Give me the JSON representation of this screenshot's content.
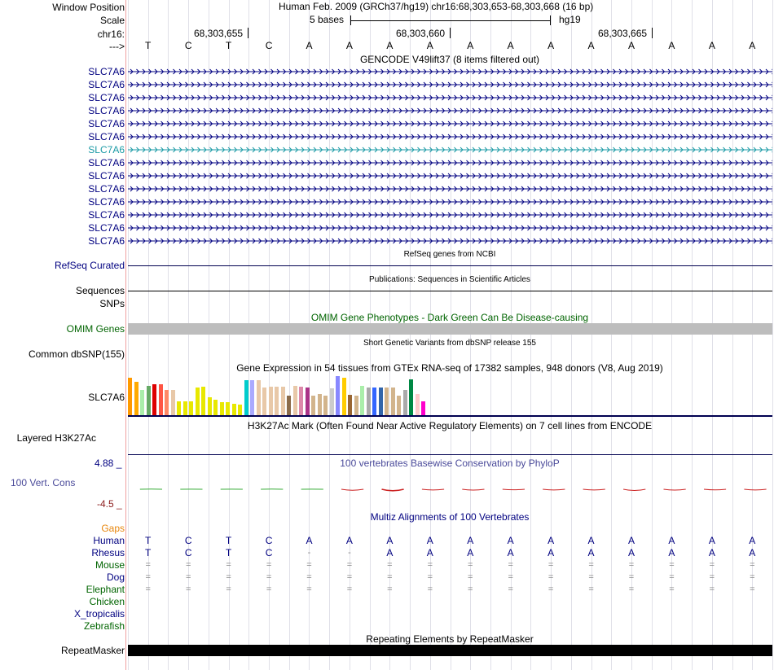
{
  "header": {
    "window_position_label": "Window Position",
    "assembly_text": "Human Feb. 2009 (GRCh37/hg19)   chr16:68,303,653-68,303,668 (16 bp)",
    "scale_label": "Scale",
    "scale_text": "5 bases",
    "scale_assembly": "hg19",
    "chrom_label": "chr16:",
    "coords": [
      "68,303,655",
      "68,303,660",
      "68,303,665"
    ],
    "strand_label": "--->",
    "bases": [
      "T",
      "C",
      "T",
      "C",
      "A",
      "A",
      "A",
      "A",
      "A",
      "A",
      "A",
      "A",
      "A",
      "A",
      "A",
      "A"
    ]
  },
  "gencode": {
    "title": "GENCODE V49lift37 (8 items filtered out)",
    "genes": [
      "SLC7A6",
      "SLC7A6",
      "SLC7A6",
      "SLC7A6",
      "SLC7A6",
      "SLC7A6",
      "SLC7A6",
      "SLC7A6",
      "SLC7A6",
      "SLC7A6",
      "SLC7A6",
      "SLC7A6",
      "SLC7A6",
      "SLC7A6"
    ],
    "highlight_index": 6
  },
  "refseq": {
    "title": "RefSeq genes from NCBI",
    "label": "RefSeq Curated"
  },
  "publications": {
    "title": "Publications: Sequences in Scientific Articles",
    "label": "Sequences"
  },
  "snps": {
    "label": "SNPs"
  },
  "omim": {
    "title": "OMIM Gene Phenotypes - Dark Green Can Be Disease-causing",
    "label": "OMIM Genes"
  },
  "dbsnp": {
    "title": "Short Genetic Variants from dbSNP release 155",
    "label": "Common dbSNP(155)"
  },
  "gtex": {
    "title": "Gene Expression in 54 tissues from GTEx RNA-seq of 17382 samples, 948 donors (V8, Aug 2019)",
    "label": "SLC7A6",
    "bars": [
      {
        "v": 0.95,
        "c": "#ff9900"
      },
      {
        "v": 0.85,
        "c": "#ffaa00"
      },
      {
        "v": 0.65,
        "c": "#aaeeaa"
      },
      {
        "v": 0.75,
        "c": "#66aa66"
      },
      {
        "v": 0.8,
        "c": "#dd0000"
      },
      {
        "v": 0.8,
        "c": "#ff5544"
      },
      {
        "v": 0.65,
        "c": "#ff8866"
      },
      {
        "v": 0.65,
        "c": "#e8c8a8"
      },
      {
        "v": 0.35,
        "c": "#e8e800"
      },
      {
        "v": 0.35,
        "c": "#e8e800"
      },
      {
        "v": 0.35,
        "c": "#e8e800"
      },
      {
        "v": 0.7,
        "c": "#e8e800"
      },
      {
        "v": 0.72,
        "c": "#e8e800"
      },
      {
        "v": 0.45,
        "c": "#e8e800"
      },
      {
        "v": 0.4,
        "c": "#e8e800"
      },
      {
        "v": 0.33,
        "c": "#e8e800"
      },
      {
        "v": 0.33,
        "c": "#e8e800"
      },
      {
        "v": 0.3,
        "c": "#e8e800"
      },
      {
        "v": 0.28,
        "c": "#e8e800"
      },
      {
        "v": 0.9,
        "c": "#00cccc"
      },
      {
        "v": 0.9,
        "c": "#aaaaff"
      },
      {
        "v": 0.9,
        "c": "#e8c8a8"
      },
      {
        "v": 0.7,
        "c": "#e8c8a8"
      },
      {
        "v": 0.72,
        "c": "#e8c8a8"
      },
      {
        "v": 0.72,
        "c": "#e8c8a8"
      },
      {
        "v": 0.73,
        "c": "#e8c8a8"
      },
      {
        "v": 0.5,
        "c": "#8b6b4a"
      },
      {
        "v": 0.75,
        "c": "#e8c8a8"
      },
      {
        "v": 0.72,
        "c": "#dd88aa"
      },
      {
        "v": 0.7,
        "c": "#aa3388"
      },
      {
        "v": 0.5,
        "c": "#d2b48c"
      },
      {
        "v": 0.55,
        "c": "#d2b48c"
      },
      {
        "v": 0.5,
        "c": "#d2b48c"
      },
      {
        "v": 0.68,
        "c": "#cccccc"
      },
      {
        "v": 1.0,
        "c": "#8888ff"
      },
      {
        "v": 0.95,
        "c": "#ffcc00"
      },
      {
        "v": 0.52,
        "c": "#996633"
      },
      {
        "v": 0.5,
        "c": "#d2b48c"
      },
      {
        "v": 0.75,
        "c": "#aaeeaa"
      },
      {
        "v": 0.7,
        "c": "#aaaaaa"
      },
      {
        "v": 0.7,
        "c": "#3366ff"
      },
      {
        "v": 0.7,
        "c": "#3366aa"
      },
      {
        "v": 0.7,
        "c": "#d2b48c"
      },
      {
        "v": 0.7,
        "c": "#d2b48c"
      },
      {
        "v": 0.5,
        "c": "#d2b48c"
      },
      {
        "v": 0.65,
        "c": "#aaaaaa"
      },
      {
        "v": 0.92,
        "c": "#008844"
      },
      {
        "v": 0.55,
        "c": "#ffcccc"
      },
      {
        "v": 0.35,
        "c": "#ff00cc"
      }
    ]
  },
  "h3k27ac": {
    "title": "H3K27Ac Mark (Often Found Near Active Regulatory Elements) on 7 cell lines from ENCODE",
    "label": "Layered H3K27Ac"
  },
  "phylop": {
    "title": "100 vertebrates Basewise Conservation by PhyloP",
    "label": "100 Vert. Cons",
    "max_label": "4.88 _",
    "min_label": "-4.5 _",
    "values": [
      0.15,
      0.1,
      0.08,
      0.15,
      0.1,
      -0.8,
      -1.2,
      -0.6,
      -0.7,
      -0.4,
      -0.6,
      -0.6,
      -1.0,
      -0.7,
      -0.5,
      -0.6
    ]
  },
  "multiz": {
    "title": "Multiz Alignments of 100 Vertebrates",
    "gaps_label": "Gaps",
    "species": [
      {
        "name": "Human",
        "row": [
          "T",
          "C",
          "T",
          "C",
          "A",
          "A",
          "A",
          "A",
          "A",
          "A",
          "A",
          "A",
          "A",
          "A",
          "A",
          "A"
        ]
      },
      {
        "name": "Rhesus",
        "row": [
          "T",
          "C",
          "T",
          "C",
          "-",
          "-",
          "A",
          "A",
          "A",
          "A",
          "A",
          "A",
          "A",
          "A",
          "A",
          "A"
        ]
      },
      {
        "name": "Mouse",
        "row": [
          "=",
          "=",
          "=",
          "=",
          "=",
          "=",
          "=",
          "=",
          "=",
          "=",
          "=",
          "=",
          "=",
          "=",
          "=",
          "="
        ]
      },
      {
        "name": "Dog",
        "row": [
          "=",
          "=",
          "=",
          "=",
          "=",
          "=",
          "=",
          "=",
          "=",
          "=",
          "=",
          "=",
          "=",
          "=",
          "=",
          "="
        ]
      },
      {
        "name": "Elephant",
        "row": [
          "=",
          "=",
          "=",
          "=",
          "=",
          "=",
          "=",
          "=",
          "=",
          "=",
          "=",
          "=",
          "=",
          "=",
          "=",
          "="
        ]
      },
      {
        "name": "Chicken",
        "row": []
      },
      {
        "name": "X_tropicalis",
        "row": []
      },
      {
        "name": "Zebrafish",
        "row": []
      }
    ]
  },
  "repeatmasker": {
    "title": "Repeating Elements by RepeatMasker",
    "label": "RepeatMasker"
  }
}
